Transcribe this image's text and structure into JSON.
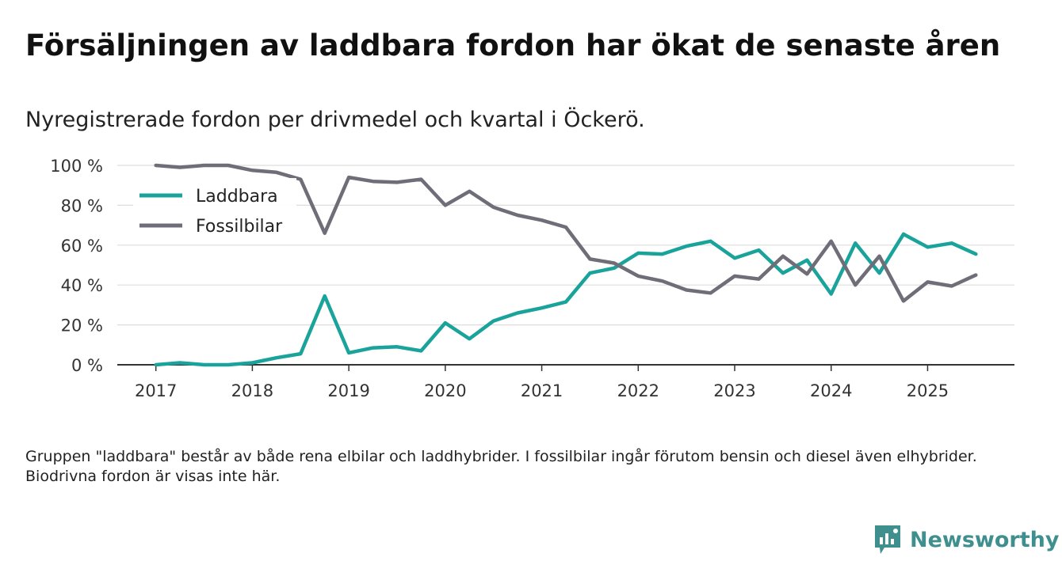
{
  "header": {
    "title": "Försäljningen av laddbara fordon har ökat de senaste åren",
    "subtitle": "Nyregistrerade fordon per drivmedel och kvartal i Öckerö."
  },
  "footnote": "Gruppen \"laddbara\" består av både rena elbilar och laddhybrider. I fossilbilar ingår förutom bensin och diesel även elhybrider. Biodrivna fordon är visas inte här.",
  "brand": {
    "name": "Newsworthy",
    "icon": "newsworthy-logo-icon",
    "color": "#3f8f8f"
  },
  "chart_data": {
    "type": "line",
    "title": "Försäljningen av laddbara fordon har ökat de senaste åren",
    "xlabel": "",
    "ylabel": "",
    "x": [
      2017.0,
      2017.25,
      2017.5,
      2017.75,
      2018.0,
      2018.25,
      2018.5,
      2018.75,
      2019.0,
      2019.25,
      2019.5,
      2019.75,
      2020.0,
      2020.25,
      2020.5,
      2020.75,
      2021.0,
      2021.25,
      2021.5,
      2021.75,
      2022.0,
      2022.25,
      2022.5,
      2022.75,
      2023.0,
      2023.25,
      2023.5,
      2023.75,
      2024.0,
      2024.25,
      2024.5,
      2024.75,
      2025.0,
      2025.25,
      2025.5
    ],
    "xlim": [
      2016.6,
      2025.9
    ],
    "ylim": [
      0,
      100
    ],
    "xticks": [
      2017,
      2018,
      2019,
      2020,
      2021,
      2022,
      2023,
      2024,
      2025
    ],
    "xtick_labels": [
      "2017",
      "2018",
      "2019",
      "2020",
      "2021",
      "2022",
      "2023",
      "2024",
      "2025"
    ],
    "yticks": [
      0,
      20,
      40,
      60,
      80,
      100
    ],
    "ytick_labels": [
      "0 %",
      "20 %",
      "40 %",
      "60 %",
      "80 %",
      "100 %"
    ],
    "grid": true,
    "legend_position": "top-left",
    "series": [
      {
        "name": "Laddbara",
        "color": "#1aa39a",
        "values": [
          0,
          1,
          0,
          0,
          1,
          3.5,
          5.5,
          34.5,
          6,
          8.5,
          9,
          7,
          21,
          13,
          22,
          26,
          28.5,
          31.5,
          46,
          48.5,
          56,
          55.5,
          59.5,
          62,
          53.5,
          57.5,
          46,
          52.5,
          35.5,
          61,
          46,
          65.5,
          59,
          61,
          55.5
        ]
      },
      {
        "name": "Fossilbilar",
        "color": "#6f6d78",
        "values": [
          100,
          99,
          100,
          100,
          97.5,
          96.5,
          93,
          66,
          94,
          92,
          91.5,
          93,
          80,
          87,
          79,
          75,
          72.5,
          69,
          53,
          51,
          44.5,
          42,
          37.5,
          36,
          44.5,
          43,
          54.5,
          45.5,
          62,
          40,
          54.5,
          32,
          41.5,
          39.5,
          45
        ]
      }
    ]
  }
}
